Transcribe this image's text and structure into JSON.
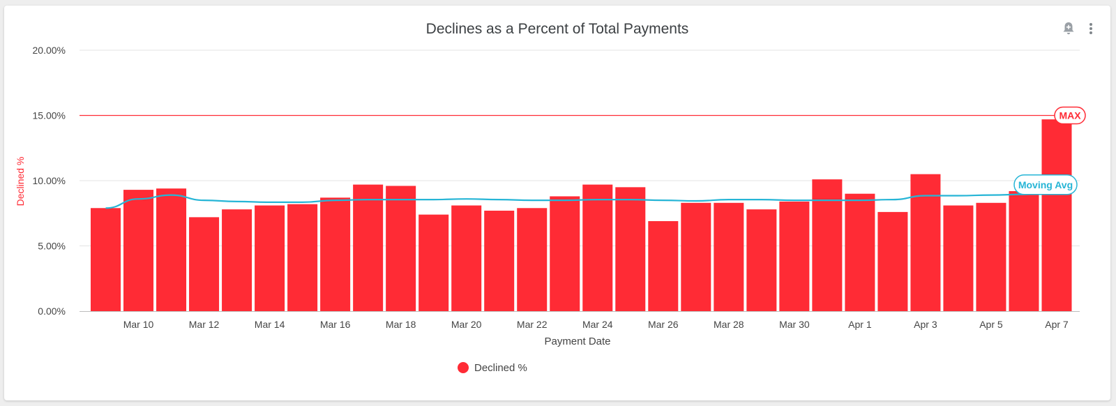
{
  "panel": {
    "icons": {
      "alert": "bell-plus-icon",
      "menu": "more-vert-icon"
    }
  },
  "chart_data": {
    "type": "bar",
    "title": "Declines as a Percent of Total Payments",
    "xlabel": "Payment Date",
    "ylabel": "Declined %",
    "ylim": [
      0,
      20
    ],
    "y_ticks": [
      "0.00%",
      "5.00%",
      "10.00%",
      "15.00%",
      "20.00%"
    ],
    "grid": true,
    "legend_position": "bottom",
    "categories": [
      "Mar 9",
      "Mar 10",
      "Mar 11",
      "Mar 12",
      "Mar 13",
      "Mar 14",
      "Mar 15",
      "Mar 16",
      "Mar 17",
      "Mar 18",
      "Mar 19",
      "Mar 20",
      "Mar 21",
      "Mar 22",
      "Mar 23",
      "Mar 24",
      "Mar 25",
      "Mar 26",
      "Mar 27",
      "Mar 28",
      "Mar 29",
      "Mar 30",
      "Mar 31",
      "Apr 1",
      "Apr 2",
      "Apr 3",
      "Apr 4",
      "Apr 5",
      "Apr 6",
      "Apr 7"
    ],
    "x_tick_labels": [
      "Mar 10",
      "Mar 12",
      "Mar 14",
      "Mar 16",
      "Mar 18",
      "Mar 20",
      "Mar 22",
      "Mar 24",
      "Mar 26",
      "Mar 28",
      "Mar 30",
      "Apr 1",
      "Apr 3",
      "Apr 5",
      "Apr 7"
    ],
    "series": [
      {
        "name": "Declined %",
        "color": "#ff2b35",
        "values": [
          7.9,
          9.3,
          9.4,
          7.2,
          7.8,
          8.1,
          8.2,
          8.7,
          9.7,
          9.6,
          7.4,
          8.1,
          7.7,
          7.9,
          8.8,
          9.7,
          9.5,
          6.9,
          8.3,
          8.3,
          7.8,
          8.4,
          10.1,
          9.0,
          7.6,
          10.5,
          8.1,
          8.3,
          9.2,
          14.7
        ]
      },
      {
        "name": "Moving Avg",
        "type": "line",
        "color": "#26b5d6",
        "values": [
          7.9,
          8.6,
          8.9,
          8.5,
          8.4,
          8.35,
          8.35,
          8.5,
          8.55,
          8.55,
          8.55,
          8.6,
          8.55,
          8.5,
          8.5,
          8.55,
          8.55,
          8.5,
          8.45,
          8.55,
          8.55,
          8.5,
          8.5,
          8.5,
          8.55,
          8.85,
          8.85,
          8.9,
          8.95,
          9.05
        ]
      }
    ],
    "reference_line": {
      "label": "MAX",
      "value": 15,
      "color": "#ff2b35"
    }
  }
}
